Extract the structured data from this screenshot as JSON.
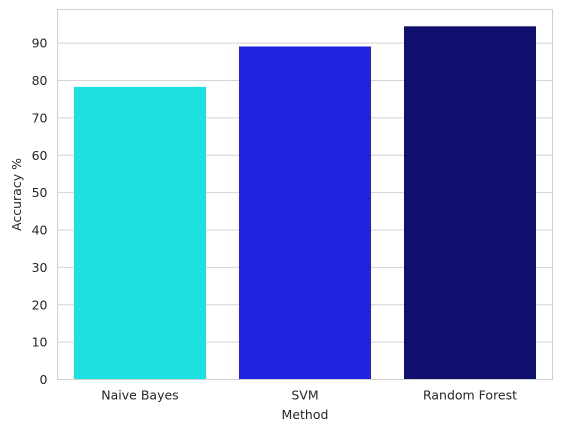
{
  "chart_data": {
    "type": "bar",
    "title": "",
    "xlabel": "Method",
    "ylabel": "Accuracy %",
    "categories": [
      "Naive Bayes",
      "SVM",
      "Random Forest"
    ],
    "values": [
      78.3,
      89.1,
      94.5
    ],
    "colors": [
      "#1de1e1",
      "#2222e1",
      "#10106e"
    ],
    "ylim": [
      0,
      99
    ],
    "yticks": [
      0,
      10,
      20,
      30,
      40,
      50,
      60,
      70,
      80,
      90
    ],
    "grid": true,
    "legend": "none"
  }
}
